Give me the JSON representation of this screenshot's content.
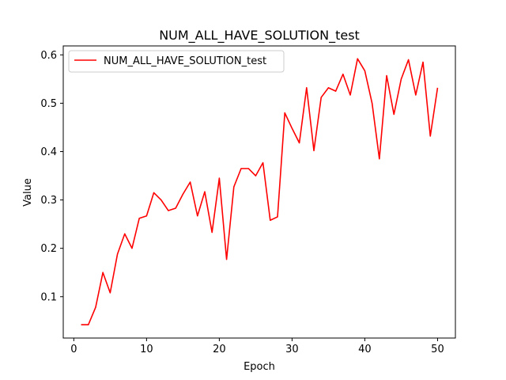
{
  "chart_data": {
    "type": "line",
    "title": "NUM_ALL_HAVE_SOLUTION_test",
    "xlabel": "Epoch",
    "ylabel": "Value",
    "xlim": [
      -1.45,
      52.45
    ],
    "ylim": [
      0.0145,
      0.6185
    ],
    "xticks": [
      0,
      10,
      20,
      30,
      40,
      50
    ],
    "yticks": [
      0.1,
      0.2,
      0.3,
      0.4,
      0.5,
      0.6
    ],
    "ytick_labels": [
      "0.1",
      "0.2",
      "0.3",
      "0.4",
      "0.5",
      "0.6"
    ],
    "grid": false,
    "legend_position": "upper-left",
    "colors": {
      "series": "#ff0000"
    },
    "series": [
      {
        "name": "NUM_ALL_HAVE_SOLUTION_test",
        "x": [
          1,
          2,
          3,
          4,
          5,
          6,
          7,
          8,
          9,
          10,
          11,
          12,
          13,
          14,
          15,
          16,
          17,
          18,
          19,
          20,
          21,
          22,
          23,
          24,
          25,
          26,
          27,
          28,
          29,
          30,
          31,
          32,
          33,
          34,
          35,
          36,
          37,
          38,
          39,
          40,
          41,
          42,
          43,
          44,
          45,
          46,
          47,
          48,
          49,
          50
        ],
        "y": [
          0.042,
          0.042,
          0.078,
          0.15,
          0.108,
          0.188,
          0.23,
          0.2,
          0.262,
          0.267,
          0.315,
          0.3,
          0.278,
          0.283,
          0.312,
          0.337,
          0.267,
          0.317,
          0.233,
          0.345,
          0.177,
          0.327,
          0.365,
          0.365,
          0.35,
          0.377,
          0.258,
          0.265,
          0.48,
          0.448,
          0.418,
          0.532,
          0.402,
          0.512,
          0.532,
          0.525,
          0.56,
          0.517,
          0.592,
          0.567,
          0.5,
          0.385,
          0.557,
          0.477,
          0.55,
          0.59,
          0.517,
          0.585,
          0.432,
          0.532
        ]
      }
    ]
  }
}
